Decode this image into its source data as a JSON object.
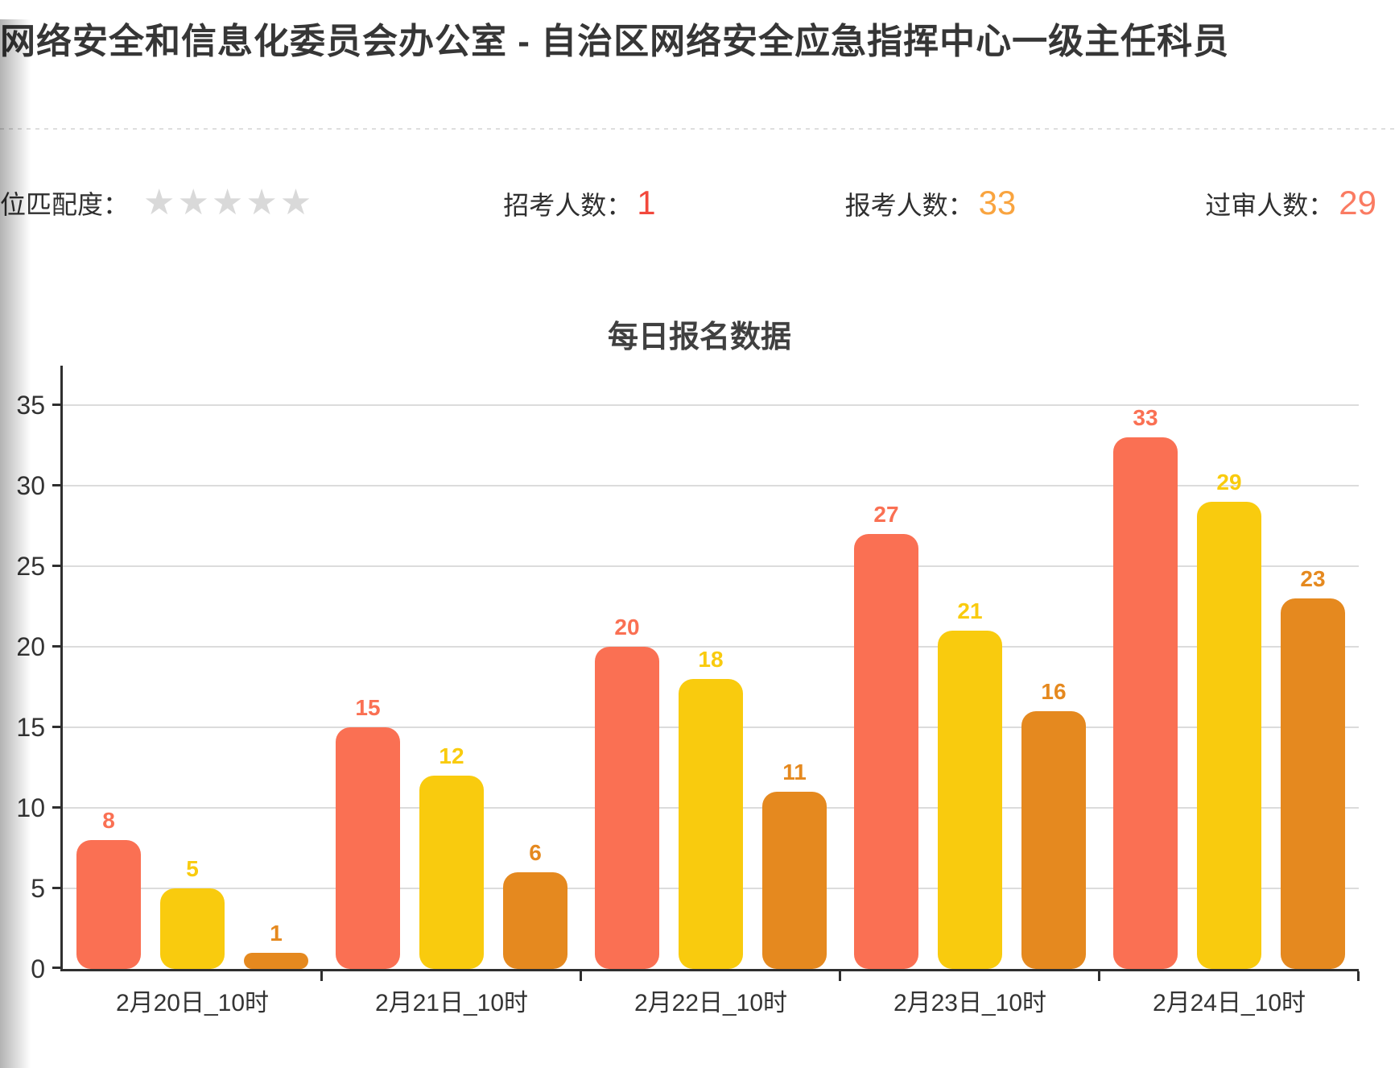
{
  "header": {
    "title": "网络安全和信息化委员会办公室 - 自治区网络安全应急指挥中心一级主任科员"
  },
  "stats": {
    "match_label": "位匹配度：",
    "stars": "★★★★★",
    "stars_total": 5,
    "stars_filled": 0,
    "recruit_label": "招考人数：",
    "recruit_value": "1",
    "apply_label": "报考人数：",
    "apply_value": "33",
    "approved_label": "过审人数：",
    "approved_value": "29"
  },
  "colors": {
    "recruit_value": "#f2483c",
    "apply_value": "#f9a43f",
    "approved_value": "#fa7b62",
    "star": "#d9d9d9",
    "bar_salmon": "#fa7053",
    "bar_yellow": "#f9cb0e",
    "bar_orange": "#e5891f",
    "axis": "#2f2f2f",
    "gridline": "#dcdcdc"
  },
  "chart_data": {
    "type": "bar",
    "title": "每日报名数据",
    "categories": [
      "2月20日_10时",
      "2月21日_10时",
      "2月22日_10时",
      "2月23日_10时",
      "2月24日_10时"
    ],
    "series": [
      {
        "color": "#fa7053",
        "values": [
          8,
          15,
          20,
          27,
          33
        ]
      },
      {
        "color": "#f9cb0e",
        "values": [
          5,
          12,
          18,
          21,
          29
        ]
      },
      {
        "color": "#e5891f",
        "values": [
          1,
          6,
          11,
          16,
          23
        ]
      }
    ],
    "ylim": [
      0,
      35
    ],
    "yticks": [
      0,
      5,
      10,
      15,
      20,
      25,
      30,
      35
    ],
    "grid": true,
    "legend": false,
    "value_labels": true,
    "xlabel": "",
    "ylabel": ""
  }
}
